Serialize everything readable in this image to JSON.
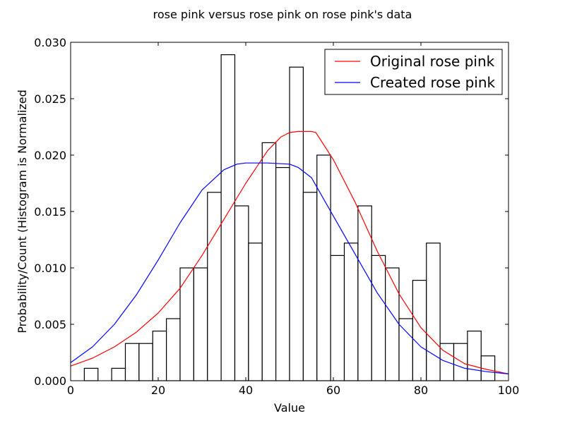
{
  "chart_data": {
    "type": "bar",
    "title": "rose pink versus rose pink on rose pink's data",
    "xlabel": "Value",
    "ylabel": "Probability/Count (Histogram is Normalized",
    "xlim": [
      0,
      100
    ],
    "ylim": [
      0,
      0.03
    ],
    "xticks": [
      "0",
      "20",
      "40",
      "60",
      "80",
      "100"
    ],
    "yticks": [
      "0.000",
      "0.005",
      "0.010",
      "0.015",
      "0.020",
      "0.025",
      "0.030"
    ],
    "grid": false,
    "legend_position": "top-right",
    "histogram": {
      "bin_edges": [
        0,
        3.125,
        6.25,
        9.375,
        12.5,
        15.625,
        18.75,
        21.875,
        25,
        28.125,
        31.25,
        34.375,
        37.5,
        40.625,
        43.75,
        46.875,
        50,
        53.125,
        56.25,
        59.375,
        62.5,
        65.625,
        68.75,
        71.875,
        75,
        78.125,
        81.25,
        84.375,
        87.5,
        90.625,
        93.75,
        96.875,
        100
      ],
      "values": [
        0,
        0.0011,
        0,
        0.0011,
        0.0033,
        0.0033,
        0.0044,
        0.0055,
        0.01,
        0.01,
        0.0167,
        0.0289,
        0.0155,
        0.0122,
        0.0211,
        0.0189,
        0.0278,
        0.0167,
        0.02,
        0.0111,
        0.0122,
        0.0155,
        0.0111,
        0.01,
        0.0055,
        0.0089,
        0.0122,
        0.0033,
        0.0033,
        0.0044,
        0.0022,
        0
      ],
      "fill": "#ffffff",
      "edge": "#000000"
    },
    "series": [
      {
        "name": "Original rose pink",
        "color": "#ff0000",
        "x": [
          0,
          5,
          10,
          15,
          20,
          25,
          30,
          35,
          40,
          45,
          48,
          50,
          52,
          55,
          56,
          60,
          65,
          70,
          75,
          80,
          85,
          90,
          95,
          100
        ],
        "y": [
          0.0013,
          0.002,
          0.003,
          0.0043,
          0.006,
          0.0082,
          0.0111,
          0.0143,
          0.0175,
          0.0204,
          0.0216,
          0.022,
          0.0221,
          0.0221,
          0.022,
          0.0196,
          0.0158,
          0.0115,
          0.0077,
          0.0047,
          0.0027,
          0.0015,
          0.001,
          0.0006
        ]
      },
      {
        "name": "Created rose pink",
        "color": "#0000ff",
        "x": [
          0,
          5,
          10,
          15,
          20,
          25,
          30,
          35,
          38,
          40,
          45,
          50,
          52,
          55,
          60,
          65,
          70,
          75,
          80,
          85,
          90,
          95,
          100
        ],
        "y": [
          0.0016,
          0.003,
          0.005,
          0.0076,
          0.0107,
          0.014,
          0.0169,
          0.0187,
          0.0192,
          0.0193,
          0.0193,
          0.0192,
          0.0189,
          0.018,
          0.0146,
          0.0112,
          0.0078,
          0.005,
          0.003,
          0.0018,
          0.0011,
          0.0008,
          0.0006
        ]
      }
    ]
  }
}
